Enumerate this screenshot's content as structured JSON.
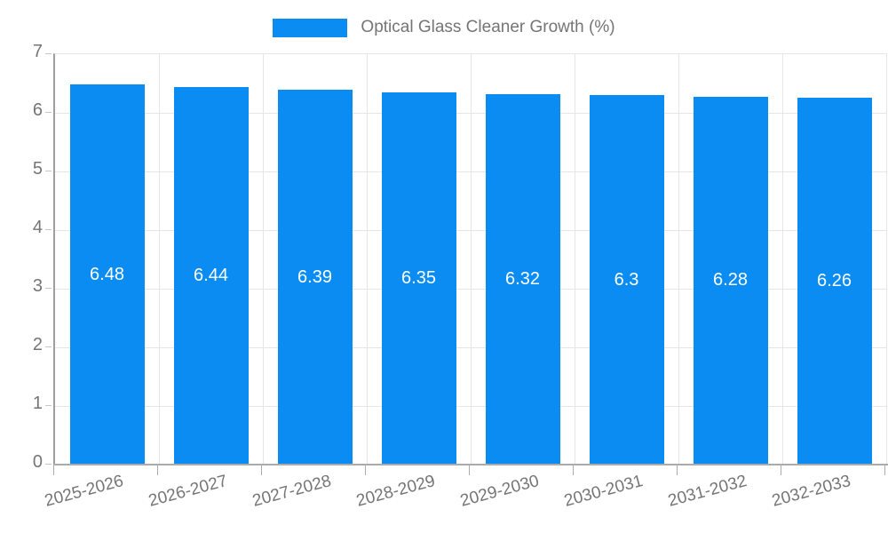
{
  "chart_data": {
    "type": "bar",
    "title": "Optical Glass Cleaner Growth (%)",
    "categories": [
      "2025-2026",
      "2026-2027",
      "2027-2028",
      "2028-2029",
      "2029-2030",
      "2030-2031",
      "2031-2032",
      "2032-2033"
    ],
    "values": [
      6.48,
      6.44,
      6.39,
      6.35,
      6.32,
      6.3,
      6.28,
      6.26
    ],
    "value_labels": [
      "6.48",
      "6.44",
      "6.39",
      "6.35",
      "6.32",
      "6.3",
      "6.28",
      "6.26"
    ],
    "xlabel": "",
    "ylabel": "",
    "ylim": [
      0,
      7
    ],
    "yticks": [
      0,
      1,
      2,
      3,
      4,
      5,
      6,
      7
    ],
    "grid": "on",
    "legend_position": "top",
    "legend_entries": [
      "Optical Glass Cleaner Growth (%)"
    ],
    "bar_color": "#0a8cf2",
    "value_label_color": "#ffffff",
    "axis_text_color": "#757575",
    "gridline_color": "#e6e6e6",
    "axis_line_color": "#9e9e9e",
    "background_color": "#ffffff"
  }
}
